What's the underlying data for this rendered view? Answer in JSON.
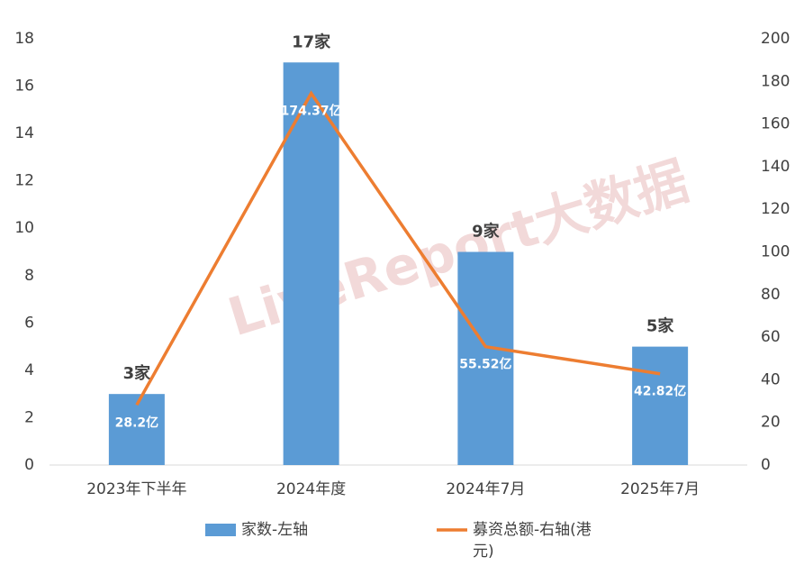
{
  "chart_data": {
    "type": "bar-line",
    "watermark": "LiveReport大数据",
    "categories": [
      "2023年下半年",
      "2024年度",
      "2024年7月",
      "2025年7月"
    ],
    "series": [
      {
        "name": "家数-左轴",
        "type": "bar",
        "color": "#5b9bd5",
        "values": [
          3,
          17,
          9,
          5
        ],
        "value_labels": [
          "3家",
          "17家",
          "9家",
          "5家"
        ]
      },
      {
        "name": "募资总额-右轴(港元)",
        "type": "line",
        "axis": "y2",
        "color": "#ed7d31",
        "values": [
          28.2,
          174.37,
          55.52,
          42.82
        ],
        "value_labels": [
          "28.2亿",
          "174.37亿",
          "55.52亿",
          "42.82亿"
        ]
      }
    ],
    "ylim": [
      0,
      18
    ],
    "yticks": [
      0,
      2,
      4,
      6,
      8,
      10,
      12,
      14,
      16,
      18
    ],
    "y2lim": [
      0,
      200
    ],
    "y2ticks": [
      0,
      20,
      40,
      60,
      80,
      100,
      120,
      140,
      160,
      180,
      200
    ],
    "grid": false
  }
}
